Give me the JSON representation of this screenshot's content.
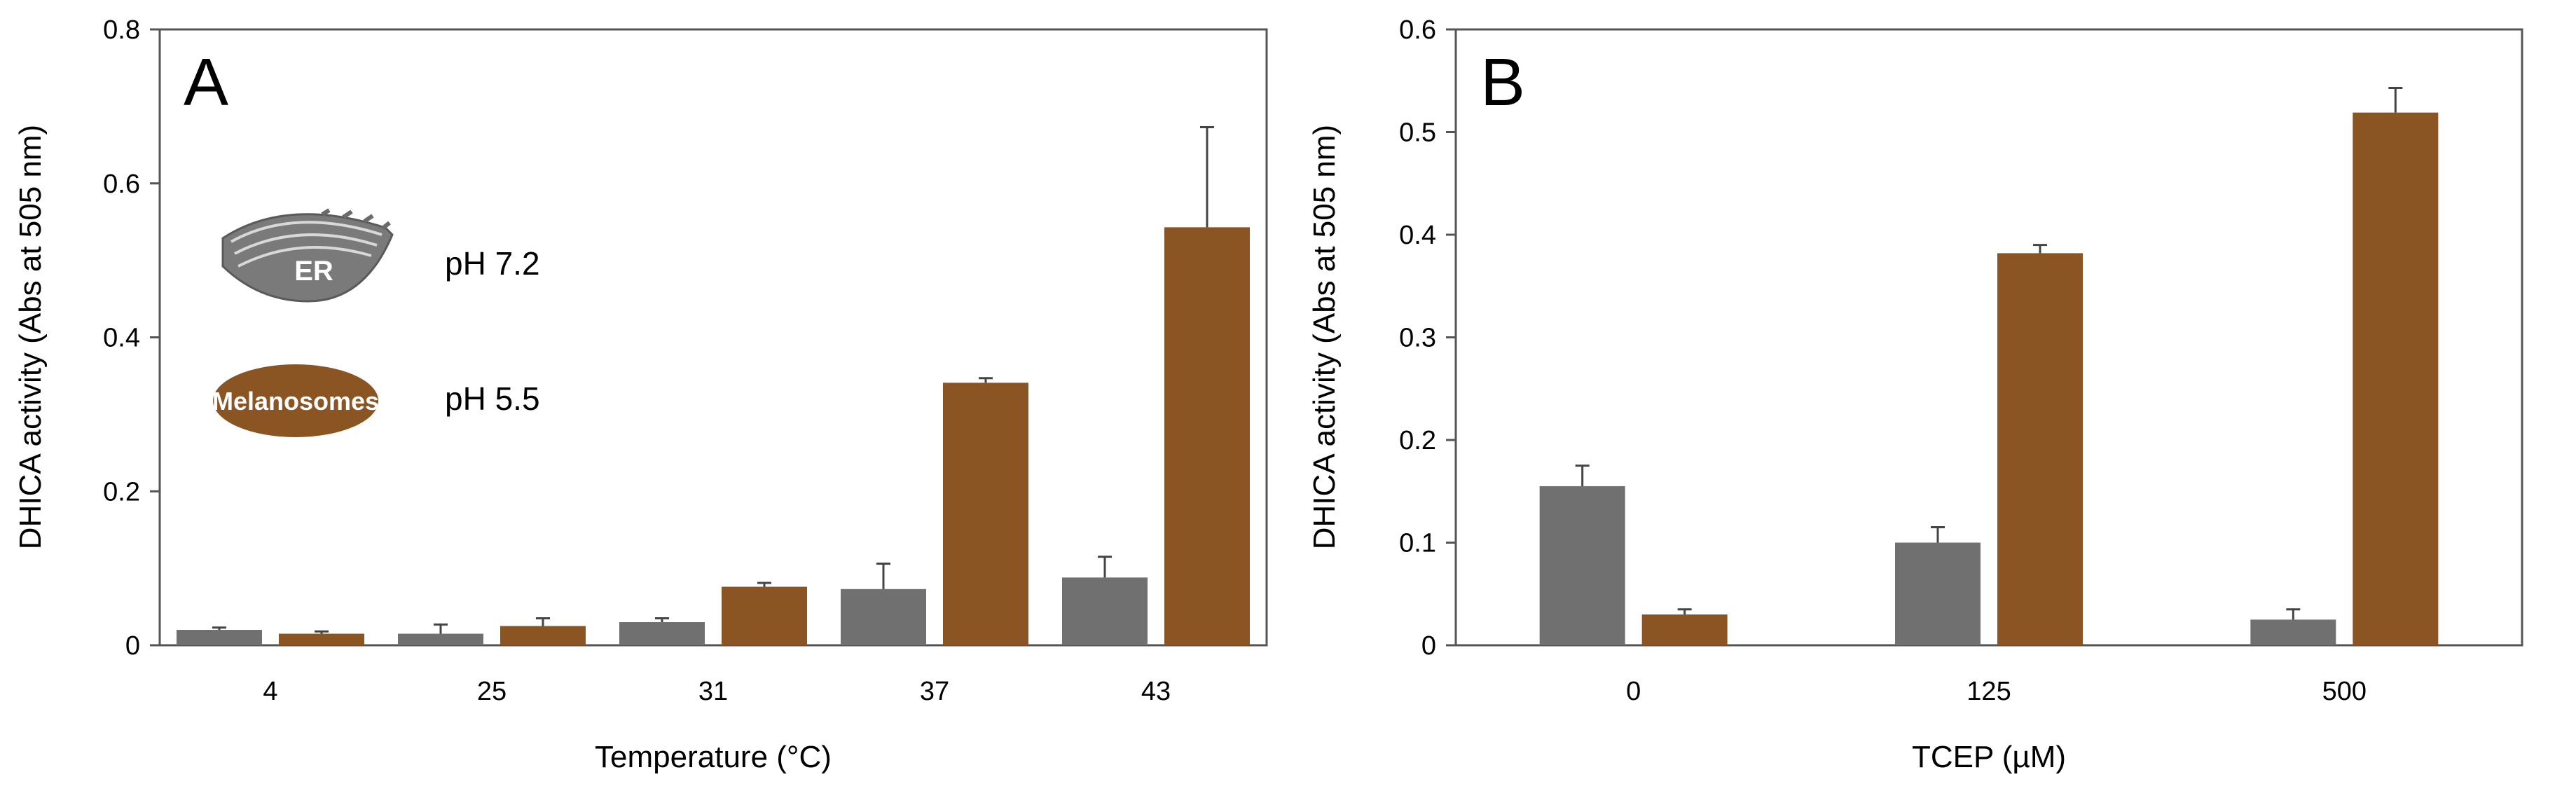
{
  "colors": {
    "er": "#707070",
    "melanosome": "#8B5523"
  },
  "legend": {
    "er_label": "ER",
    "er_ph": "pH 7.2",
    "mel_label": "Melanosomes",
    "mel_ph": "pH 5.5"
  },
  "chart_data": [
    {
      "type": "bar",
      "panel": "A",
      "title": "",
      "xlabel": "Temperature (°C)",
      "ylabel": "DHICA activity (Abs at 505 nm)",
      "ylim": [
        0,
        0.8
      ],
      "yticks": [
        0,
        0.2,
        0.4,
        0.6,
        0.8
      ],
      "ytick_labels": [
        "0",
        "0.2",
        "0.4",
        "0.6",
        "0.8"
      ],
      "categories": [
        "4",
        "25",
        "31",
        "37",
        "43"
      ],
      "series": [
        {
          "name": "ER (pH 7.2)",
          "color_key": "er",
          "values": [
            0.02,
            0.015,
            0.03,
            0.073,
            0.088
          ],
          "errors": [
            0.003,
            0.012,
            0.005,
            0.033,
            0.027
          ]
        },
        {
          "name": "Melanosomes (pH 5.5)",
          "color_key": "melanosome",
          "values": [
            0.015,
            0.025,
            0.076,
            0.341,
            0.543
          ],
          "errors": [
            0.003,
            0.01,
            0.005,
            0.006,
            0.13
          ]
        }
      ]
    },
    {
      "type": "bar",
      "panel": "B",
      "title": "",
      "xlabel": "TCEP (µM)",
      "ylabel": "DHICA activity (Abs at 505 nm)",
      "ylim": [
        0,
        0.6
      ],
      "yticks": [
        0,
        0.1,
        0.2,
        0.3,
        0.4,
        0.5,
        0.6
      ],
      "ytick_labels": [
        "0",
        "0.1",
        "0.2",
        "0.3",
        "0.4",
        "0.5",
        "0.6"
      ],
      "categories": [
        "0",
        "125",
        "500"
      ],
      "series": [
        {
          "name": "ER (pH 7.2)",
          "color_key": "er",
          "values": [
            0.155,
            0.1,
            0.025
          ],
          "errors": [
            0.02,
            0.015,
            0.01
          ]
        },
        {
          "name": "Melanosomes (pH 5.5)",
          "color_key": "melanosome",
          "values": [
            0.03,
            0.382,
            0.519
          ],
          "errors": [
            0.005,
            0.008,
            0.024
          ]
        }
      ]
    }
  ]
}
